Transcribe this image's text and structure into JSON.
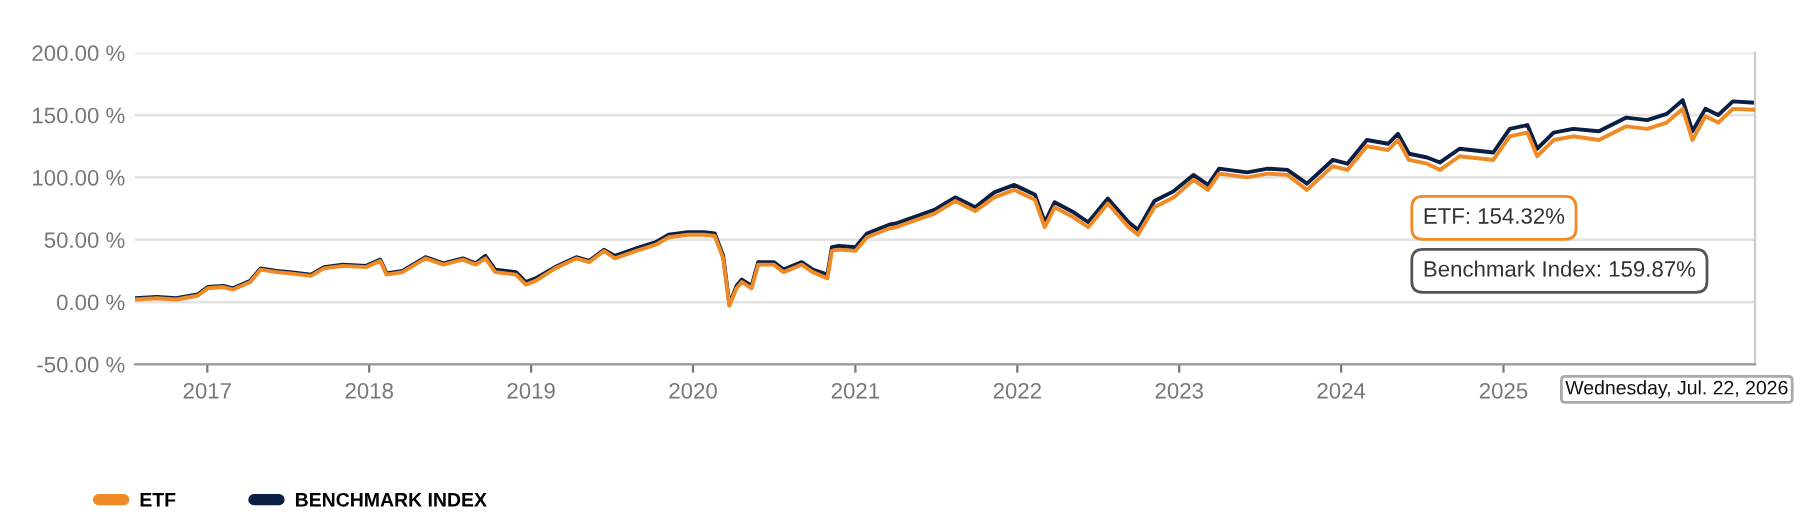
{
  "chart_data": {
    "type": "line",
    "x": [
      "2016-07-22",
      "2016-09-09",
      "2016-10-23",
      "2016-12-10",
      "2017-01-02",
      "2017-02-06",
      "2017-02-28",
      "2017-04-08",
      "2017-05-01",
      "2017-06-06",
      "2017-07-06",
      "2017-08-23",
      "2017-09-21",
      "2017-11-03",
      "2017-12-25",
      "2018-01-26",
      "2018-02-09",
      "2018-03-17",
      "2018-05-08",
      "2018-06-17",
      "2018-07-31",
      "2018-08-29",
      "2018-09-20",
      "2018-10-12",
      "2018-11-28",
      "2018-12-20",
      "2019-01-11",
      "2019-02-24",
      "2019-04-13",
      "2019-05-12",
      "2019-06-14",
      "2019-07-09",
      "2019-08-26",
      "2019-10-09",
      "2019-11-07",
      "2019-12-20",
      "2020-01-26",
      "2020-02-19",
      "2020-03-09",
      "2020-03-23",
      "2020-04-08",
      "2020-04-20",
      "2020-05-12",
      "2020-05-27",
      "2020-07-01",
      "2020-07-23",
      "2020-09-02",
      "2020-09-27",
      "2020-10-30",
      "2020-11-09",
      "2020-11-25",
      "2021-01-01",
      "2021-01-27",
      "2021-03-18",
      "2021-04-02",
      "2021-06-28",
      "2021-08-14",
      "2021-09-28",
      "2021-11-10",
      "2021-12-25",
      "2022-02-10",
      "2022-03-04",
      "2022-03-26",
      "2022-05-08",
      "2022-06-10",
      "2022-07-24",
      "2022-09-09",
      "2022-09-30",
      "2022-11-06",
      "2022-12-20",
      "2023-02-02",
      "2023-03-07",
      "2023-04-01",
      "2023-06-03",
      "2023-07-20",
      "2023-09-02",
      "2023-10-16",
      "2023-12-13",
      "2024-01-15",
      "2024-02-28",
      "2024-04-16",
      "2024-05-08",
      "2024-06-02",
      "2024-07-13",
      "2024-08-11",
      "2024-09-24",
      "2024-12-09",
      "2025-01-15",
      "2025-02-24",
      "2025-03-18",
      "2025-04-24",
      "2025-06-07",
      "2025-08-04",
      "2025-10-05",
      "2025-11-21",
      "2026-01-04",
      "2026-02-09",
      "2026-03-03",
      "2026-04-01",
      "2026-04-30",
      "2026-06-02",
      "2026-07-22"
    ],
    "series": [
      {
        "name": "ETF",
        "color": "#f08a24",
        "values": [
          2,
          3,
          2,
          5,
          11,
          12,
          10,
          16,
          26,
          24,
          23,
          21,
          27,
          29,
          28,
          33,
          22,
          24,
          35,
          30,
          34,
          30,
          35,
          24,
          22,
          14,
          17,
          27,
          35,
          32,
          41,
          35,
          41,
          46,
          52,
          54,
          54,
          53,
          35,
          -3,
          11,
          16,
          11,
          30,
          30,
          24,
          30,
          24,
          19,
          41,
          42,
          41,
          52,
          59,
          60,
          71,
          81,
          73,
          84,
          90,
          82,
          60,
          76,
          68,
          60,
          79,
          60,
          54,
          76,
          84,
          98,
          90,
          103,
          100,
          103,
          102,
          90,
          109,
          106,
          125,
          122,
          130,
          114,
          111,
          106,
          117,
          114,
          133,
          136,
          117,
          130,
          133,
          130,
          141,
          139,
          144,
          155,
          130,
          149,
          144,
          155,
          154.32
        ]
      },
      {
        "name": "BENCHMARK INDEX",
        "color": "#0b1f44",
        "values": [
          3,
          4,
          3,
          6,
          12,
          13,
          11,
          17,
          27,
          25,
          24,
          22,
          28,
          30,
          29,
          34,
          23,
          25,
          36,
          31,
          35,
          31,
          37,
          26,
          24,
          16,
          19,
          28,
          36,
          33,
          42,
          37,
          43,
          48,
          54,
          56,
          56,
          55,
          37,
          -2,
          13,
          18,
          13,
          32,
          32,
          26,
          32,
          26,
          22,
          44,
          45,
          44,
          55,
          62,
          63,
          74,
          84,
          76,
          88,
          94,
          86,
          64,
          80,
          72,
          64,
          83,
          64,
          58,
          81,
          89,
          102,
          94,
          107,
          104,
          107,
          106,
          95,
          114,
          111,
          130,
          127,
          135,
          119,
          116,
          112,
          123,
          120,
          139,
          142,
          123,
          136,
          139,
          137,
          148,
          146,
          151,
          162,
          137,
          155,
          150,
          161,
          159.87
        ]
      }
    ],
    "ylim": [
      -50,
      200
    ],
    "yticks": [
      {
        "value": -50,
        "label": "-50.00 %"
      },
      {
        "value": 0,
        "label": "0.00 %"
      },
      {
        "value": 50,
        "label": "50.00 %"
      },
      {
        "value": 100,
        "label": "100.00 %"
      },
      {
        "value": 150,
        "label": "150.00 %"
      },
      {
        "value": 200,
        "label": "200.00 %"
      }
    ],
    "xlim": [
      "2016-07-22",
      "2026-07-22"
    ],
    "xticks": [
      {
        "value": "2017-01-01",
        "label": "2017"
      },
      {
        "value": "2018-01-01",
        "label": "2018"
      },
      {
        "value": "2019-01-01",
        "label": "2019"
      },
      {
        "value": "2020-01-01",
        "label": "2020"
      },
      {
        "value": "2021-01-01",
        "label": "2021"
      },
      {
        "value": "2022-01-01",
        "label": "2022"
      },
      {
        "value": "2023-01-01",
        "label": "2023"
      },
      {
        "value": "2024-01-01",
        "label": "2024"
      },
      {
        "value": "2025-01-01",
        "label": "2025"
      }
    ],
    "annotations": [
      "ETF: 154.32%",
      "Benchmark Index: 159.87%",
      "Wednesday, Jul. 22, 2026"
    ],
    "grid": "y",
    "legend": "bottom left",
    "marker": "none",
    "line_style": "solid"
  }
}
